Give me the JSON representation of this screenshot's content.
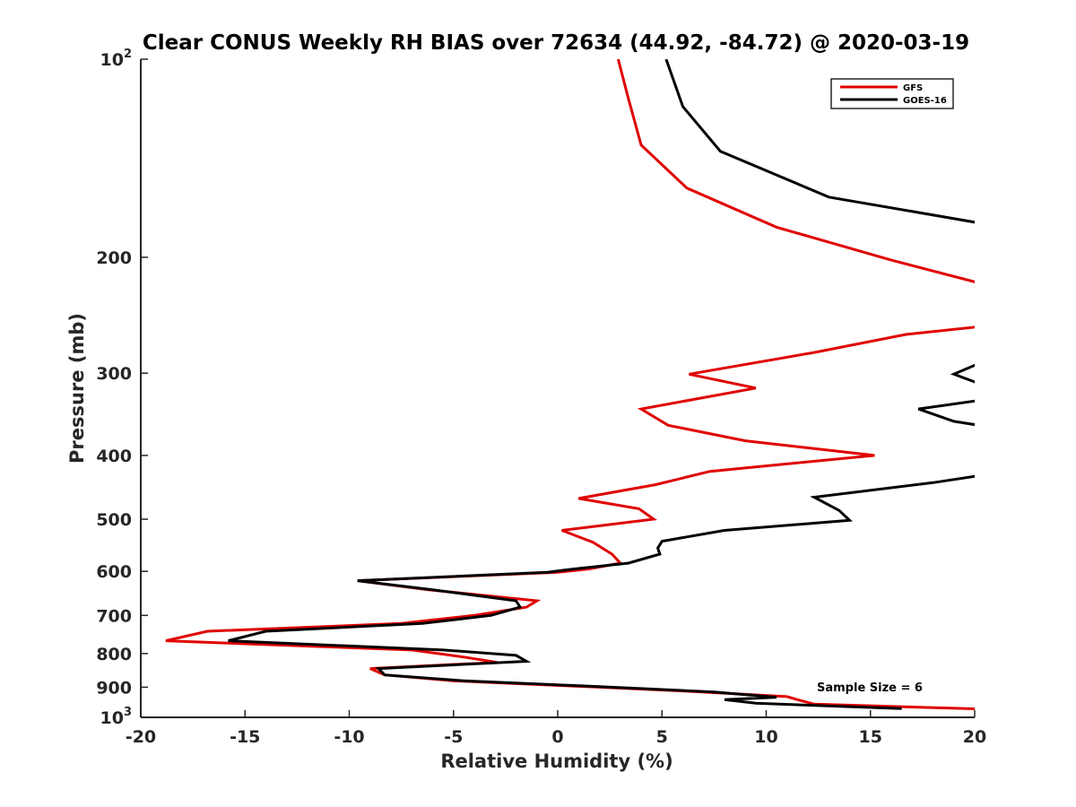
{
  "chart_data": {
    "type": "line",
    "title": "Clear CONUS Weekly RH BIAS over 72634 (44.92, -84.72) @ 2020-03-19",
    "xlabel": "Relative Humidity (%)",
    "ylabel": "Pressure (mb)",
    "xlim": [
      -20,
      20
    ],
    "ylim": [
      100,
      1000
    ],
    "yscale": "log",
    "yreversed": true,
    "x_ticks": [
      {
        "value": -20,
        "label": "-20"
      },
      {
        "value": -15,
        "label": "-15"
      },
      {
        "value": -10,
        "label": "-10"
      },
      {
        "value": -5,
        "label": "-5"
      },
      {
        "value": 0,
        "label": "0"
      },
      {
        "value": 5,
        "label": "5"
      },
      {
        "value": 10,
        "label": "10"
      },
      {
        "value": 15,
        "label": "15"
      },
      {
        "value": 20,
        "label": "20"
      }
    ],
    "y_ticks": [
      {
        "value": 100,
        "base": "10",
        "exp": "2"
      },
      {
        "value": 200,
        "label": "200"
      },
      {
        "value": 300,
        "label": "300"
      },
      {
        "value": 400,
        "label": "400"
      },
      {
        "value": 500,
        "label": "500"
      },
      {
        "value": 600,
        "label": "600"
      },
      {
        "value": 700,
        "label": "700"
      },
      {
        "value": 800,
        "label": "800"
      },
      {
        "value": 900,
        "label": "900"
      },
      {
        "value": 1000,
        "base": "10",
        "exp": "3"
      }
    ],
    "legend_position": "top-right",
    "annotation": "Sample Size = 6",
    "series": [
      {
        "name": "GFS",
        "color": "#e00000",
        "points": [
          [
            2.9,
            100
          ],
          [
            3.4,
            115
          ],
          [
            4.0,
            135
          ],
          [
            6.2,
            157
          ],
          [
            10.5,
            180
          ],
          [
            16.0,
            202
          ],
          [
            20.5,
            220
          ],
          [
            null,
            null
          ],
          [
            20.2,
            255
          ],
          [
            16.7,
            262
          ],
          [
            12.3,
            279
          ],
          [
            6.3,
            301
          ],
          [
            9.5,
            316
          ],
          [
            4.0,
            340
          ],
          [
            5.3,
            360
          ],
          [
            9.0,
            380
          ],
          [
            15.2,
            400
          ],
          [
            7.3,
            423
          ],
          [
            4.7,
            443
          ],
          [
            1.0,
            465
          ],
          [
            3.9,
            482
          ],
          [
            4.6,
            500
          ],
          [
            0.2,
            520
          ],
          [
            1.7,
            542
          ],
          [
            2.6,
            565
          ],
          [
            3.0,
            583
          ],
          [
            1.5,
            595
          ],
          [
            0.0,
            602
          ],
          [
            -9.6,
            620
          ],
          [
            -6.2,
            640
          ],
          [
            -1.0,
            665
          ],
          [
            -1.5,
            680
          ],
          [
            -4.0,
            700
          ],
          [
            -7.5,
            720
          ],
          [
            -16.8,
            740
          ],
          [
            -18.8,
            765
          ],
          [
            -7.0,
            790
          ],
          [
            -4.5,
            810
          ],
          [
            -2.9,
            825
          ],
          [
            -9.0,
            843
          ],
          [
            -8.3,
            862
          ],
          [
            -5.0,
            880
          ],
          [
            2.0,
            900
          ],
          [
            6.0,
            912
          ],
          [
            11.0,
            930
          ],
          [
            11.5,
            940
          ],
          [
            12.3,
            955
          ],
          [
            20.5,
            972
          ]
        ]
      },
      {
        "name": "GOES-16",
        "color": "#000000",
        "points": [
          [
            5.2,
            100
          ],
          [
            6.0,
            118
          ],
          [
            7.8,
            138
          ],
          [
            13.0,
            162
          ],
          [
            20.5,
            178
          ],
          [
            null,
            null
          ],
          [
            20.2,
            290
          ],
          [
            19.0,
            301
          ],
          [
            20.2,
            311
          ],
          [
            null,
            null
          ],
          [
            20.2,
            330
          ],
          [
            17.3,
            340
          ],
          [
            19.0,
            355
          ],
          [
            20.2,
            360
          ],
          [
            null,
            null
          ],
          [
            20.5,
            428
          ],
          [
            18.0,
            440
          ],
          [
            12.3,
            463
          ],
          [
            13.5,
            485
          ],
          [
            14.0,
            502
          ],
          [
            8.0,
            520
          ],
          [
            5.0,
            540
          ],
          [
            4.8,
            553
          ],
          [
            4.9,
            565
          ],
          [
            3.4,
            583
          ],
          [
            0.8,
            595
          ],
          [
            -0.5,
            602
          ],
          [
            -9.6,
            620
          ],
          [
            -6.0,
            640
          ],
          [
            -2.0,
            665
          ],
          [
            -1.8,
            680
          ],
          [
            -3.2,
            700
          ],
          [
            -6.5,
            720
          ],
          [
            -14.0,
            740
          ],
          [
            -15.8,
            765
          ],
          [
            -5.5,
            790
          ],
          [
            -2.0,
            805
          ],
          [
            -1.5,
            822
          ],
          [
            -8.6,
            843
          ],
          [
            -8.3,
            862
          ],
          [
            -4.5,
            880
          ],
          [
            2.0,
            898
          ],
          [
            7.5,
            915
          ],
          [
            10.5,
            932
          ],
          [
            8.0,
            940
          ],
          [
            9.5,
            952
          ],
          [
            16.5,
            970
          ]
        ]
      }
    ]
  }
}
